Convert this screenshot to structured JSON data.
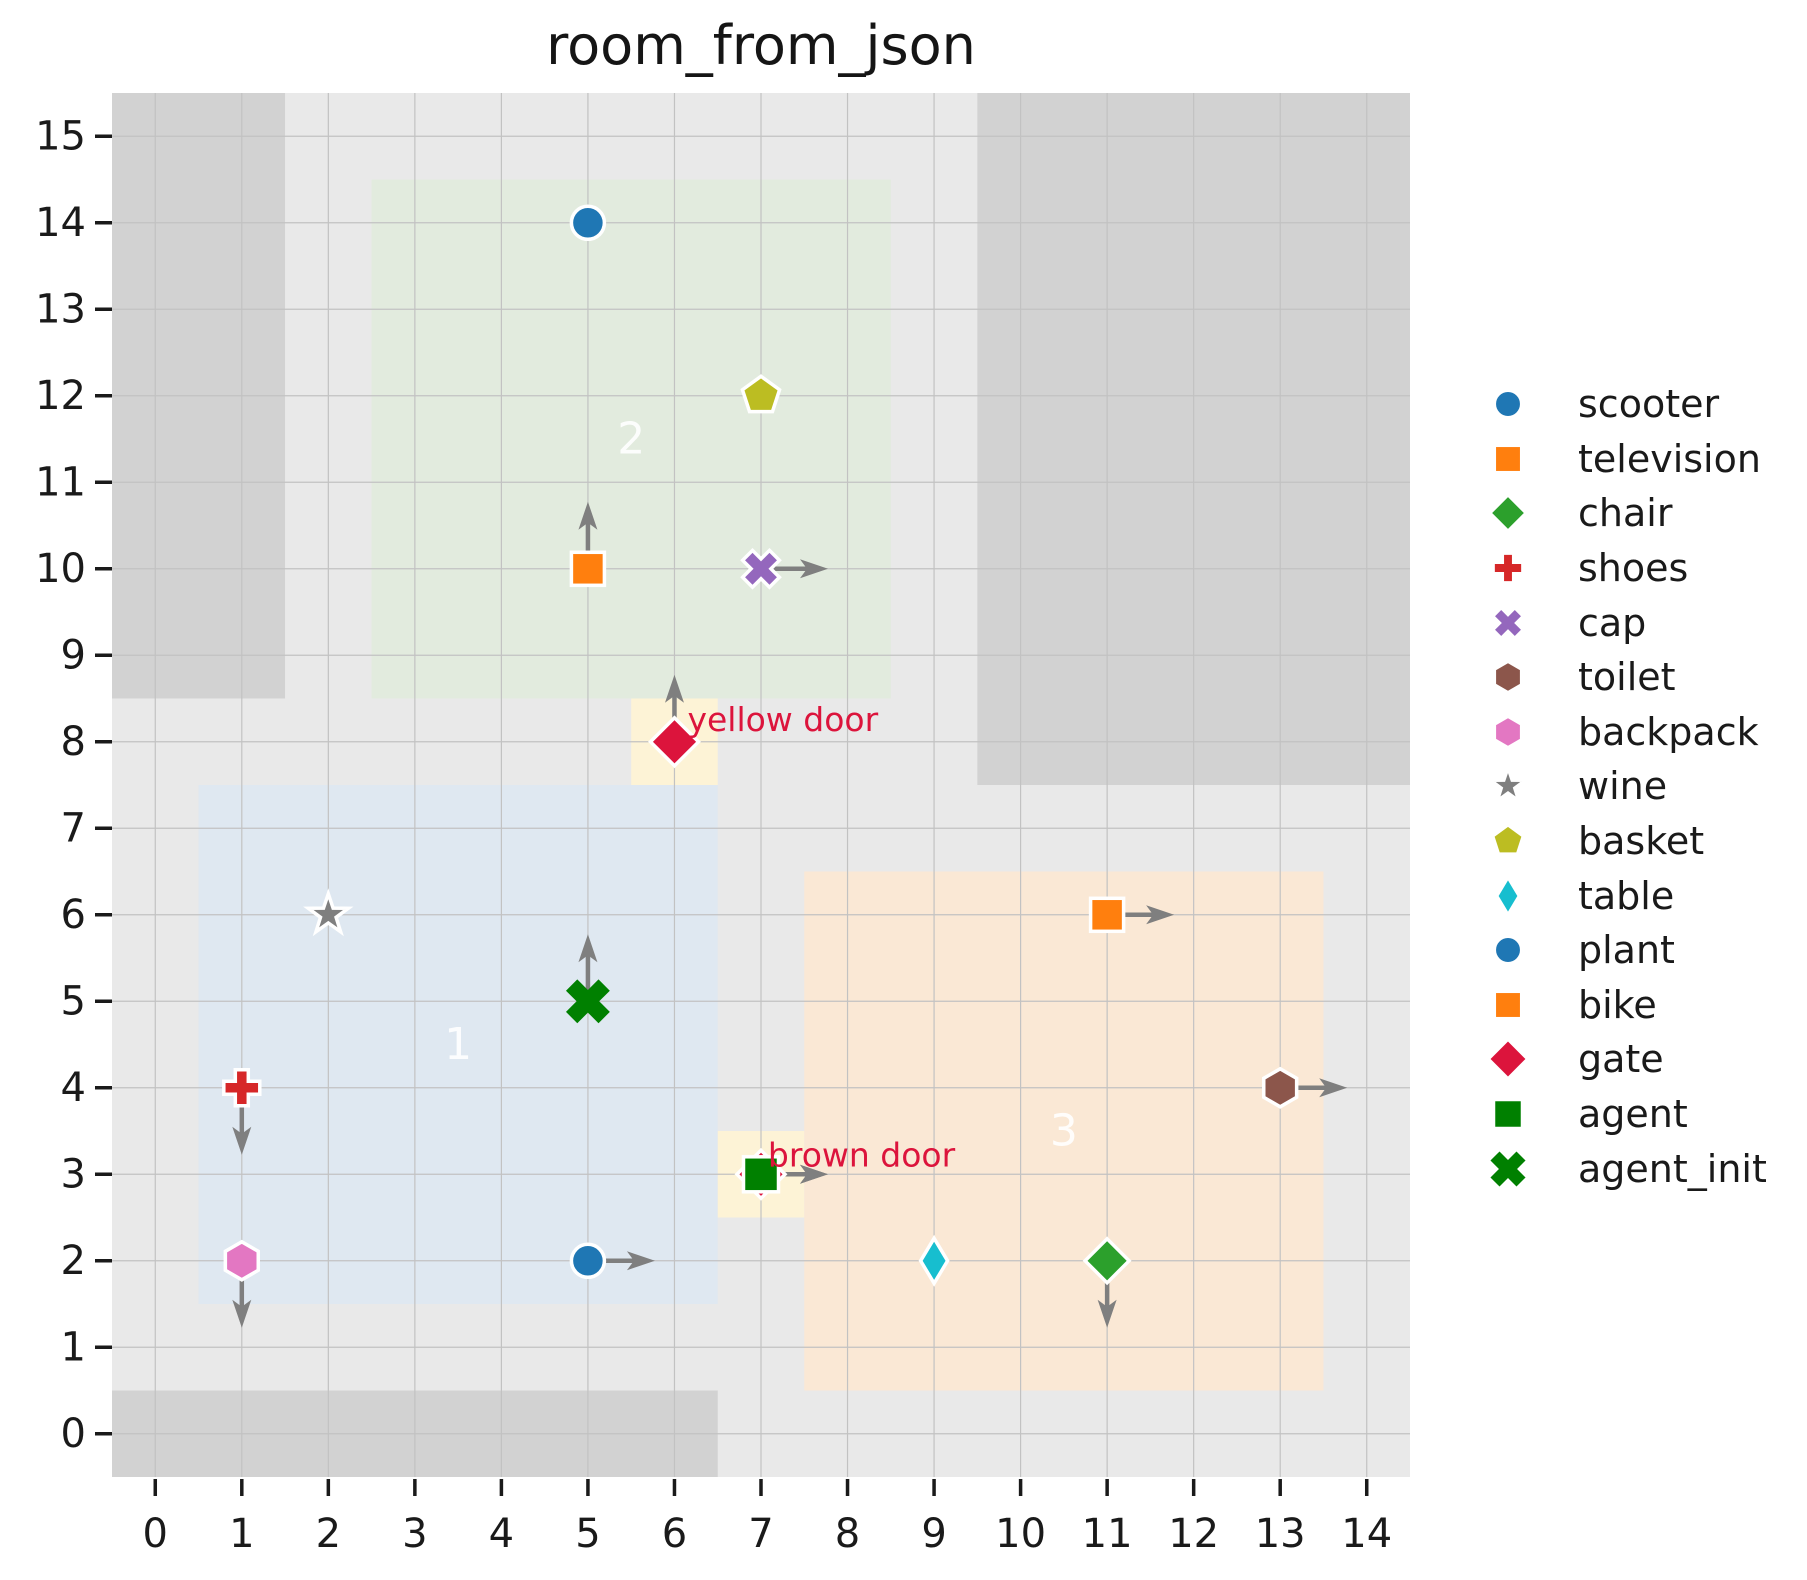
{
  "chart_data": {
    "type": "scatter",
    "title": "room_from_json",
    "xlabel": "",
    "ylabel": "",
    "xlim": [
      -0.5,
      14.5
    ],
    "ylim": [
      -0.5,
      15.5
    ],
    "xticks": [
      0,
      1,
      2,
      3,
      4,
      5,
      6,
      7,
      8,
      9,
      10,
      11,
      12,
      13,
      14
    ],
    "yticks": [
      0,
      1,
      2,
      3,
      4,
      5,
      6,
      7,
      8,
      9,
      10,
      11,
      12,
      13,
      14,
      15
    ],
    "grid": true,
    "legend_position": "right",
    "colors": {
      "figure_background": "#ffffff",
      "plot_background": "#e9e9e9",
      "wall": "#d2d2d2",
      "grid": "#c2c2c2",
      "tick": "#1a1a1a",
      "room_label": "#ffffff",
      "door_patch": "#fdf3d6",
      "door_marker": "#dc143c",
      "door_label": "#dc143c",
      "arrow": "#7f7f7f"
    },
    "walls": [
      {
        "name": "wall-top-left",
        "x0": -0.5,
        "y0": 8.5,
        "x1": 1.5,
        "y1": 15.5
      },
      {
        "name": "wall-top-right",
        "x0": 9.5,
        "y0": 7.5,
        "x1": 14.5,
        "y1": 15.5
      },
      {
        "name": "wall-bottom-left",
        "x0": -0.5,
        "y0": -0.5,
        "x1": 6.5,
        "y1": 0.5
      }
    ],
    "rooms": [
      {
        "label": "1",
        "x0": 0.5,
        "y0": 1.5,
        "x1": 6.5,
        "y1": 7.5,
        "color": "#dfe8f1",
        "label_x": 3.5,
        "label_y": 4.5
      },
      {
        "label": "2",
        "x0": 2.5,
        "y0": 8.5,
        "x1": 8.5,
        "y1": 14.5,
        "color": "#e2ebde",
        "label_x": 5.5,
        "label_y": 11.5
      },
      {
        "label": "3",
        "x0": 7.5,
        "y0": 0.5,
        "x1": 13.5,
        "y1": 6.5,
        "color": "#fae8d5",
        "label_x": 10.5,
        "label_y": 3.5
      }
    ],
    "doors": [
      {
        "name": "yellow door",
        "x0": 5.5,
        "y0": 7.5,
        "x1": 6.5,
        "y1": 8.5,
        "x": 6,
        "y": 8,
        "arrow": "up",
        "label_x": 6.15,
        "label_y": 8.26
      },
      {
        "name": "brown door",
        "x0": 6.5,
        "y0": 2.5,
        "x1": 7.5,
        "y1": 3.5,
        "x": 7,
        "y": 3,
        "arrow": "right",
        "label_x": 7.08,
        "label_y": 3.22
      }
    ],
    "objects": [
      {
        "name": "scooter",
        "marker": "circle",
        "color": "#1f77b4",
        "x": 5,
        "y": 14,
        "arrow": null
      },
      {
        "name": "television",
        "marker": "square",
        "color": "#ff7f0e",
        "x": 5,
        "y": 10,
        "arrow": "up"
      },
      {
        "name": "basket",
        "marker": "pentagon",
        "color": "#bcbd22",
        "x": 7,
        "y": 12,
        "arrow": null
      },
      {
        "name": "cap",
        "marker": "x",
        "color": "#9467bd",
        "x": 7,
        "y": 10,
        "arrow": "right"
      },
      {
        "name": "wine",
        "marker": "star",
        "color": "#7f7f7f",
        "x": 2,
        "y": 6,
        "arrow": null
      },
      {
        "name": "agent_init",
        "marker": "x-plain",
        "color": "#008000",
        "x": 5,
        "y": 5,
        "arrow": "up"
      },
      {
        "name": "shoes",
        "marker": "plus",
        "color": "#d62728",
        "x": 1,
        "y": 4,
        "arrow": "down"
      },
      {
        "name": "backpack",
        "marker": "hexagon",
        "color": "#e377c2",
        "x": 1,
        "y": 2,
        "arrow": "down"
      },
      {
        "name": "plant",
        "marker": "circle",
        "color": "#1f77b4",
        "x": 5,
        "y": 2,
        "arrow": "right"
      },
      {
        "name": "bike",
        "marker": "square",
        "color": "#ff7f0e",
        "x": 11,
        "y": 6,
        "arrow": "right"
      },
      {
        "name": "toilet",
        "marker": "hexagon",
        "color": "#8c564b",
        "x": 13,
        "y": 4,
        "arrow": "right"
      },
      {
        "name": "table",
        "marker": "thin-diamond",
        "color": "#17becf",
        "x": 9,
        "y": 2,
        "arrow": null
      },
      {
        "name": "chair",
        "marker": "diamond",
        "color": "#2ca02c",
        "x": 11,
        "y": 2,
        "arrow": "down"
      },
      {
        "name": "agent",
        "marker": "agent-square",
        "color": "#008000",
        "x": 7,
        "y": 3,
        "arrow": "right"
      }
    ],
    "legend": [
      {
        "label": "scooter",
        "marker": "circle",
        "color": "#1f77b4"
      },
      {
        "label": "television",
        "marker": "square",
        "color": "#ff7f0e"
      },
      {
        "label": "chair",
        "marker": "diamond",
        "color": "#2ca02c"
      },
      {
        "label": "shoes",
        "marker": "plus",
        "color": "#d62728"
      },
      {
        "label": "cap",
        "marker": "x",
        "color": "#9467bd"
      },
      {
        "label": "toilet",
        "marker": "hexagon",
        "color": "#8c564b"
      },
      {
        "label": "backpack",
        "marker": "hexagon",
        "color": "#e377c2"
      },
      {
        "label": "wine",
        "marker": "star",
        "color": "#7f7f7f"
      },
      {
        "label": "basket",
        "marker": "pentagon",
        "color": "#bcbd22"
      },
      {
        "label": "table",
        "marker": "thin-diamond",
        "color": "#17becf"
      },
      {
        "label": "plant",
        "marker": "circle",
        "color": "#1f77b4"
      },
      {
        "label": "bike",
        "marker": "square",
        "color": "#ff7f0e"
      },
      {
        "label": "gate",
        "marker": "gate-diamond",
        "color": "#dc143c"
      },
      {
        "label": "agent",
        "marker": "agent-square",
        "color": "#008000"
      },
      {
        "label": "agent_init",
        "marker": "x-plain",
        "color": "#008000"
      }
    ]
  }
}
